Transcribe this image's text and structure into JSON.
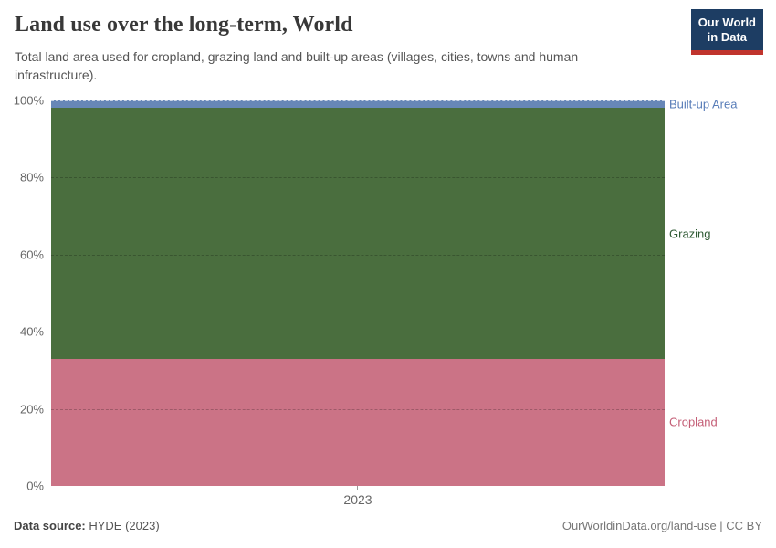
{
  "header": {
    "title": "Land use over the long-term, World",
    "subtitle": "Total land area used for cropland, grazing land and built-up areas (villages, cities, towns and human infrastructure).",
    "logo": {
      "line1": "Our World",
      "line2": "in Data",
      "bg_color": "#1d3d63",
      "accent_color": "#c0342d"
    }
  },
  "chart_data": {
    "type": "area",
    "stacked": true,
    "normalized": true,
    "title": "Land use over the long-term, World",
    "x": [
      "2023"
    ],
    "series": [
      {
        "name": "Built-up Area",
        "values": [
          2
        ],
        "color": "#6787b7",
        "label_color": "#577cb8"
      },
      {
        "name": "Grazing",
        "values": [
          65
        ],
        "color": "#4a6e3e",
        "label_color": "#2f5a34"
      },
      {
        "name": "Cropland",
        "values": [
          33
        ],
        "color": "#cb7386",
        "label_color": "#c45e76"
      }
    ],
    "yticks": [
      "100%",
      "80%",
      "60%",
      "40%",
      "20%",
      "0%"
    ],
    "ylim": [
      0,
      100
    ],
    "xlabel": "",
    "ylabel": "",
    "grid": "horizontal-dashed",
    "legend_position": "right-of-area"
  },
  "footer": {
    "source_label": "Data source:",
    "source_value": " HYDE (2023)",
    "credit": "OurWorldinData.org/land-use | CC BY"
  }
}
